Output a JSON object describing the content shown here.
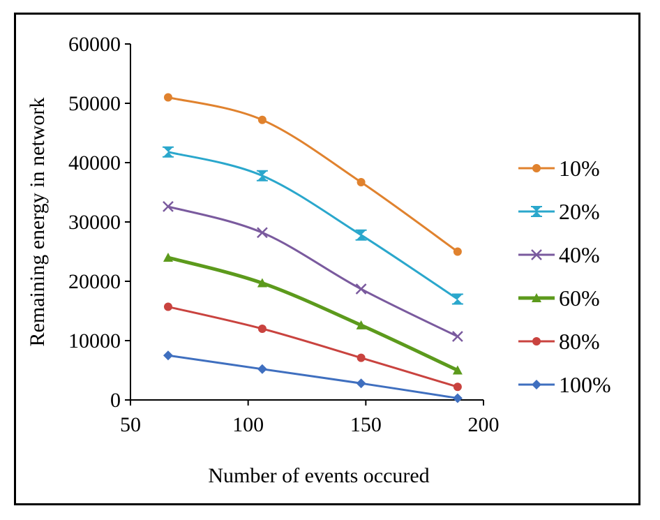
{
  "chart_data": {
    "type": "line",
    "title": "",
    "xlabel": "Number of events occured",
    "ylabel": "Remaining energy in network",
    "x": [
      66,
      106,
      148,
      189
    ],
    "xlim": [
      50,
      200
    ],
    "ylim": [
      0,
      60000
    ],
    "xticks": [
      50,
      100,
      150,
      200
    ],
    "xtick_labels": [
      "50",
      "100",
      "150",
      "200"
    ],
    "yticks": [
      0,
      10000,
      20000,
      30000,
      40000,
      50000,
      60000
    ],
    "ytick_labels": [
      "0",
      "10000",
      "20000",
      "30000",
      "40000",
      "50000",
      "60000"
    ],
    "grid": false,
    "legend_position": "right",
    "series": [
      {
        "name": "10%",
        "values": [
          51000,
          47200,
          36700,
          25000
        ],
        "color": "#e0822e",
        "marker": "circle",
        "width": 3
      },
      {
        "name": "20%",
        "values": [
          41800,
          37800,
          27800,
          17000
        ],
        "color": "#2aa7cc",
        "marker": "hourglass",
        "width": 3
      },
      {
        "name": "40%",
        "values": [
          32600,
          28200,
          18700,
          10700
        ],
        "color": "#7a5a9e",
        "marker": "x",
        "width": 3
      },
      {
        "name": "60%",
        "values": [
          24000,
          19700,
          12600,
          5000
        ],
        "color": "#5c9a1c",
        "marker": "triangle",
        "width": 5
      },
      {
        "name": "80%",
        "values": [
          15700,
          12000,
          7100,
          2200
        ],
        "color": "#c9433f",
        "marker": "circle",
        "width": 3
      },
      {
        "name": "100%",
        "values": [
          7500,
          5200,
          2800,
          300
        ],
        "color": "#3f6fbf",
        "marker": "diamond",
        "width": 3
      }
    ]
  }
}
